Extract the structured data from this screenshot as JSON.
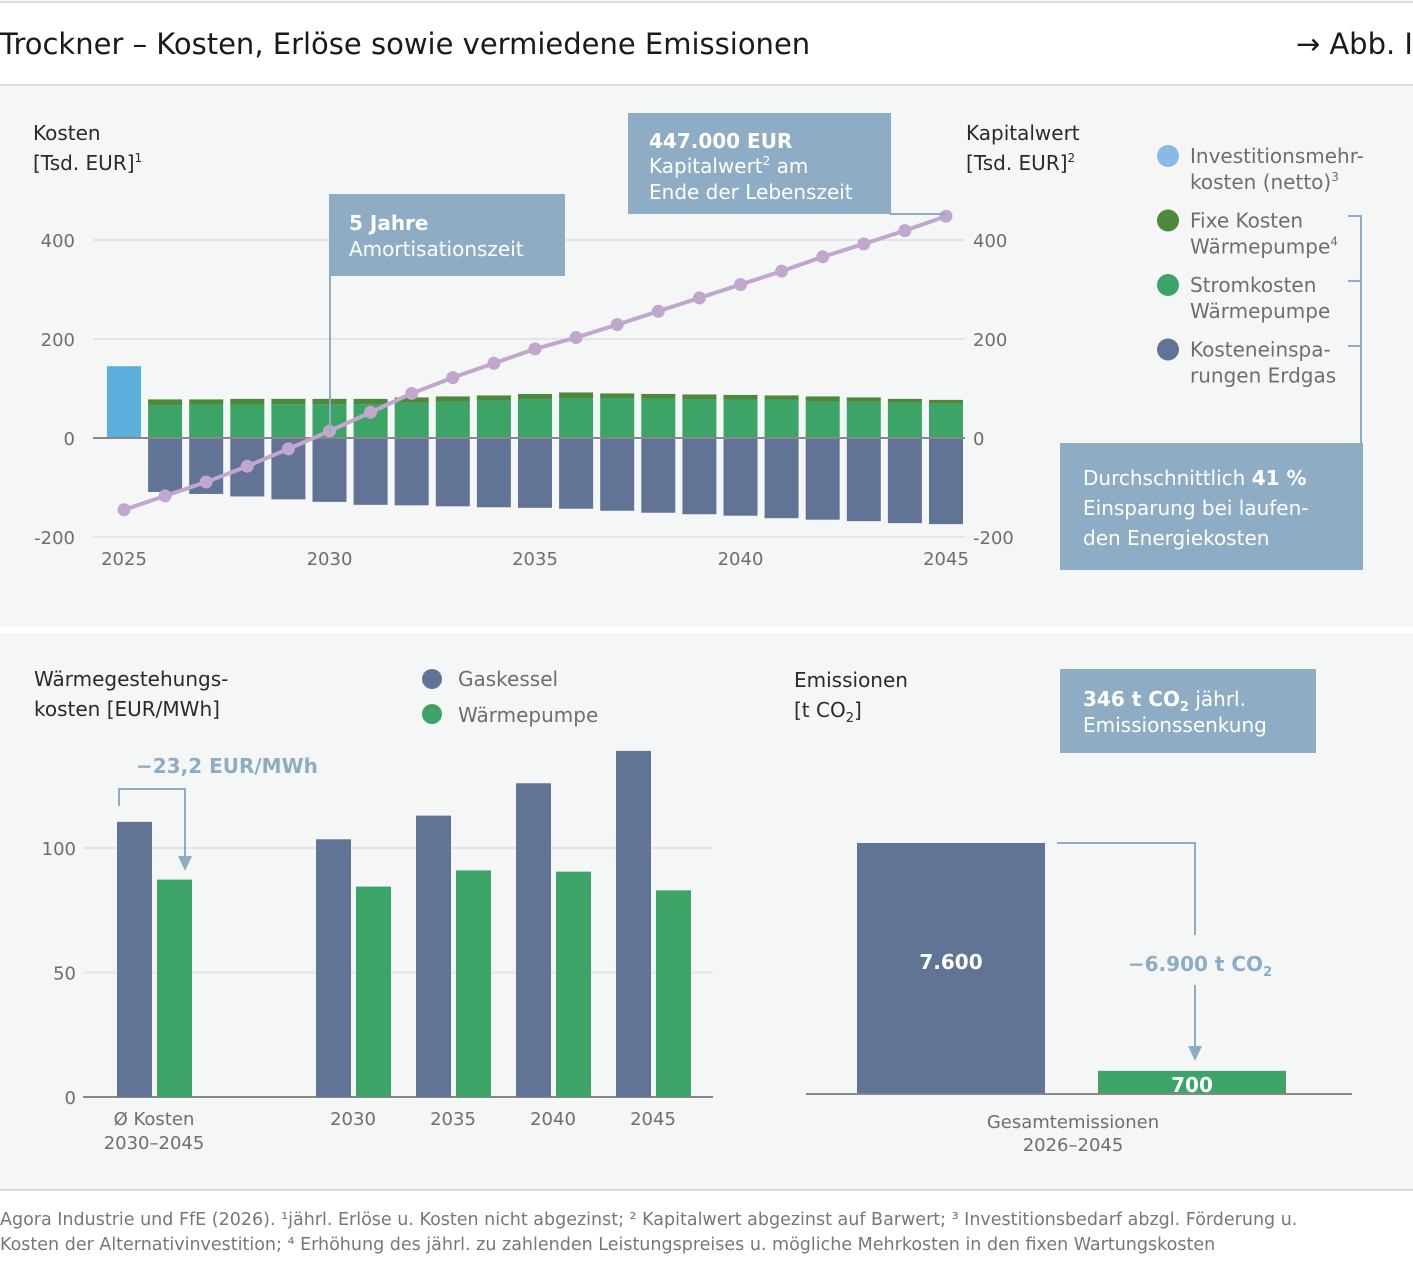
{
  "header": {
    "title": "Trockner – Kosten, Erlöse sowie vermiedene Emissionen",
    "figure_ref": "→ Abb. I"
  },
  "colors": {
    "invest": "#5aafdc",
    "invest_legend": "#8cb8e6",
    "fixed": "#4b8a3b",
    "strom": "#3ba466",
    "savings": "#627496",
    "kapitalwert": "#c1a7cd",
    "annotation": "#8eadc5",
    "gas": "#627496",
    "wp": "#3ba466"
  },
  "chart_data": [
    {
      "type": "bar",
      "subtype": "stacked-bar-with-line",
      "ylabel_left": "Kosten",
      "ylabel_left_unit": "[Tsd. EUR]",
      "ylabel_left_sup": "1",
      "ylabel_right": "Kapitalwert",
      "ylabel_right_unit": "[Tsd. EUR]",
      "ylabel_right_sup": "2",
      "ylim": [
        -200,
        450
      ],
      "yticks": [
        "400",
        "200",
        "0",
        "-200"
      ],
      "ytick_values": [
        400,
        200,
        0,
        -200
      ],
      "xticks": [
        "2025",
        "2030",
        "2035",
        "2040",
        "2045"
      ],
      "xtick_values": [
        2025,
        2030,
        2035,
        2040,
        2045
      ],
      "x": [
        2025,
        2026,
        2027,
        2028,
        2029,
        2030,
        2031,
        2032,
        2033,
        2034,
        2035,
        2036,
        2037,
        2038,
        2039,
        2040,
        2041,
        2042,
        2043,
        2044,
        2045
      ],
      "series": [
        {
          "name": "Investitionsmehr-kosten (netto)",
          "sup": "3",
          "key": "invest",
          "values": [
            145,
            0,
            0,
            0,
            0,
            0,
            0,
            0,
            0,
            0,
            0,
            0,
            0,
            0,
            0,
            0,
            0,
            0,
            0,
            0,
            0
          ]
        },
        {
          "name": "Stromkosten Wärmepumpe",
          "key": "strom",
          "values": [
            0,
            66,
            67,
            67,
            68,
            68,
            68,
            71,
            73,
            76,
            78,
            80,
            80,
            79,
            78,
            77,
            77,
            73,
            73,
            71,
            69
          ]
        },
        {
          "name": "Fixe Kosten Wärmepumpe",
          "sup": "4",
          "key": "fixed",
          "values": [
            0,
            12,
            11,
            12,
            11,
            11,
            11,
            11,
            11,
            10,
            11,
            12,
            10,
            10,
            10,
            10,
            9,
            11,
            9,
            8,
            8
          ]
        },
        {
          "name": "Kosteneinspa-rungen Erdgas",
          "key": "savings",
          "values": [
            0,
            -109,
            -113,
            -118,
            -124,
            -129,
            -135,
            -136,
            -138,
            -140,
            -141,
            -143,
            -147,
            -151,
            -154,
            -157,
            -162,
            -165,
            -168,
            -172,
            -174
          ]
        },
        {
          "name": "Kapitalwert",
          "type": "line",
          "key": "kapitalwert",
          "values": [
            -145,
            -117,
            -89,
            -57,
            -22,
            14,
            52,
            90,
            122,
            151,
            180,
            203,
            229,
            256,
            283,
            310,
            337,
            366,
            392,
            419,
            448
          ]
        }
      ],
      "legend_order": [
        "invest",
        "fixed",
        "strom",
        "savings"
      ],
      "legend": [
        [
          "Investitionsmehr-",
          "kosten (netto)",
          "3"
        ],
        [
          "Fixe Kosten",
          "Wärmepumpe",
          "4"
        ],
        [
          "Stromkosten",
          "Wärmepumpe",
          ""
        ],
        [
          "Kosteneinspa-",
          "rungen Erdgas",
          ""
        ]
      ],
      "annotations": {
        "payback": {
          "bold": "5 Jahre",
          "text": "Amortisationszeit"
        },
        "npv": {
          "bold": "447.000 EUR",
          "line2_a": "Kapitalwert",
          "line2_sup": "2",
          "line2_b": " am",
          "line3": "Ende der Lebenszeit"
        },
        "savings": {
          "pre": "Durchschnittlich ",
          "bold": "41 %",
          "line2": "Einsparung bei laufen-",
          "line3": "den Energiekosten"
        }
      }
    },
    {
      "type": "bar",
      "ylabel": [
        "Wärmegestehungs-",
        "kosten [EUR/MWh]"
      ],
      "ylim": [
        0,
        140
      ],
      "yticks": [
        "100",
        "50",
        "0"
      ],
      "ytick_values": [
        100,
        50,
        0
      ],
      "categories": [
        [
          "Ø Kosten",
          "2030–2045"
        ],
        [
          "2030"
        ],
        [
          "2035"
        ],
        [
          "2040"
        ],
        [
          "2045"
        ]
      ],
      "series": [
        {
          "name": "Gaskessel",
          "values": [
            110.5,
            103.5,
            113,
            126,
            139
          ]
        },
        {
          "name": "Wärmepumpe",
          "values": [
            87.3,
            84.5,
            91,
            90.5,
            83
          ]
        }
      ],
      "legend_placement": "top",
      "annotation": "−23,2 EUR/MWh"
    },
    {
      "type": "bar",
      "ylabel": "Emissionen",
      "ylabel_unit_a": "[t CO",
      "ylabel_unit_sub": "2",
      "ylabel_unit_b": "]",
      "category": [
        "Gesamtemissionen",
        "2026–2045"
      ],
      "values": [
        7600,
        700
      ],
      "labels": [
        "7.600",
        "700"
      ],
      "diff_label_a": "−6.900 t CO",
      "diff_label_sub": "2",
      "box": {
        "bold_a": "346 t CO",
        "bold_sub": "2",
        "rest": " jährl.",
        "line2": "Emissionssenkung"
      }
    }
  ],
  "footnote": {
    "line1": "Agora Industrie und FfE (2026). ¹jährl. Erlöse u. Kosten nicht abgezinst; ² Kapitalwert abgezinst auf Barwert; ³ Investitionsbedarf abzgl. Förderung u.",
    "line2": "Kosten der Alternativinvestition; ⁴ Erhöhung des jährl. zu zahlenden Leistungspreises u. mögliche Mehrkosten in den fixen Wartungskosten"
  }
}
